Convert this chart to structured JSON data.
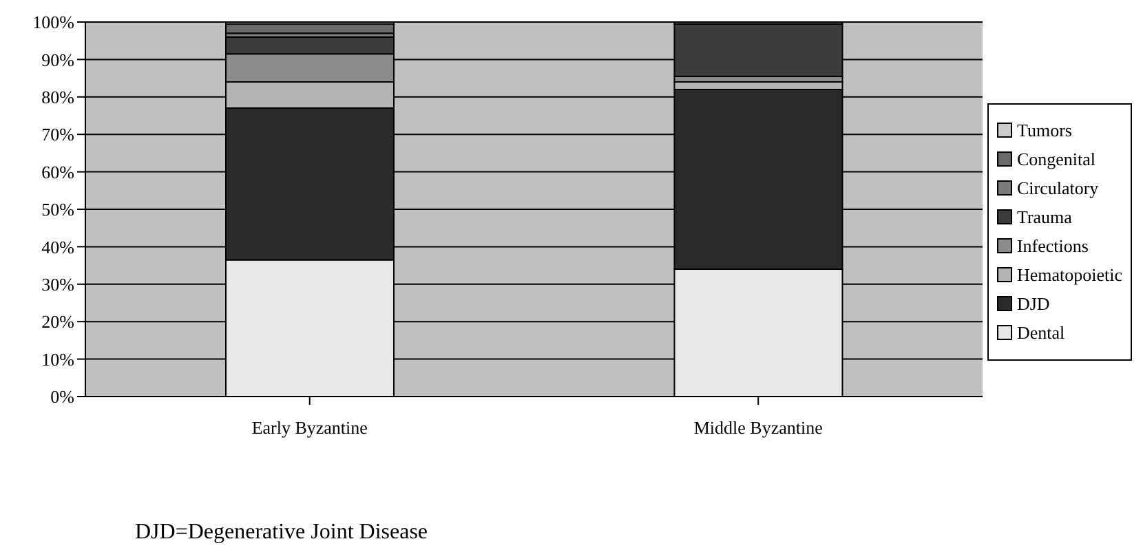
{
  "chart_data": {
    "type": "bar",
    "stacked": true,
    "categories": [
      "Early Byzantine",
      "Middle Byzantine"
    ],
    "series": [
      {
        "name": "Dental",
        "color": "#e8e8e8",
        "values": [
          36.5,
          34
        ]
      },
      {
        "name": "DJD",
        "color": "#2a2a2a",
        "values": [
          40.5,
          48
        ]
      },
      {
        "name": "Hematopoietic",
        "color": "#b4b4b4",
        "values": [
          7,
          2
        ]
      },
      {
        "name": "Infections",
        "color": "#8c8c8c",
        "values": [
          7.5,
          1.5
        ]
      },
      {
        "name": "Trauma",
        "color": "#3c3c3c",
        "values": [
          4.5,
          14
        ]
      },
      {
        "name": "Circulatory",
        "color": "#7a7a7a",
        "values": [
          1,
          0.5
        ]
      },
      {
        "name": "Congenital",
        "color": "#6a6a6a",
        "values": [
          2.5,
          0
        ]
      },
      {
        "name": "Tumors",
        "color": "#cccccc",
        "values": [
          0.5,
          0
        ]
      }
    ],
    "ylim": [
      0,
      100
    ],
    "yticks": [
      {
        "value": 0,
        "label": "0%"
      },
      {
        "value": 10,
        "label": "10%"
      },
      {
        "value": 20,
        "label": "20%"
      },
      {
        "value": 30,
        "label": "30%"
      },
      {
        "value": 40,
        "label": "40%"
      },
      {
        "value": 50,
        "label": "50%"
      },
      {
        "value": 60,
        "label": "60%"
      },
      {
        "value": 70,
        "label": "70%"
      },
      {
        "value": 80,
        "label": "80%"
      },
      {
        "value": 90,
        "label": "90%"
      },
      {
        "value": 100,
        "label": "100%"
      }
    ],
    "grid": "y",
    "legend": "right",
    "annotations": [
      "DJD=Degenerative Joint Disease"
    ]
  }
}
